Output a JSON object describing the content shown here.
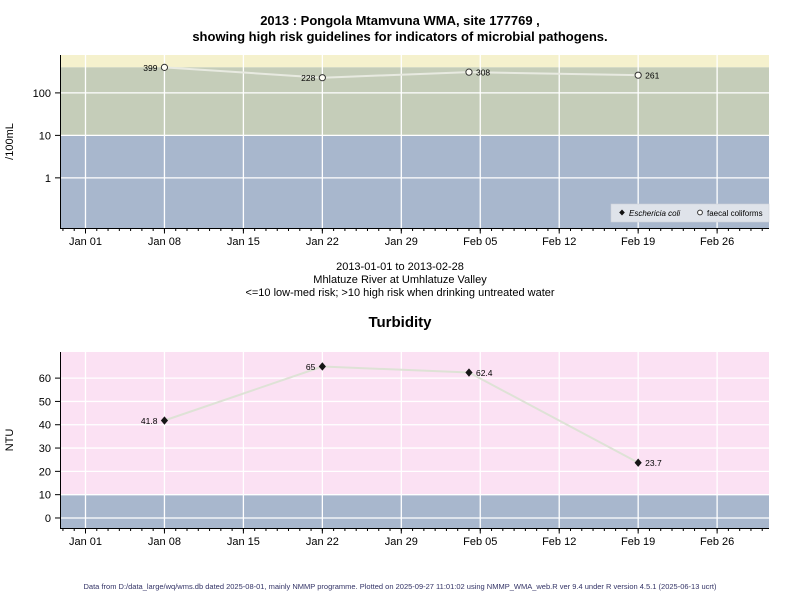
{
  "page": {
    "footer": "Data from D:/data_large/wq/wms.db dated 2025-08-01, mainly NMMP programme. Plotted on 2025-09-27 11:01:02 using NMMP_WMA_web.R ver 9.4 under R version 4.5.1 (2025-06-13 ucrt)"
  },
  "chart_data": [
    {
      "id": "microbial-pathogens",
      "type": "line",
      "title_lines": [
        "2013 : Pongola Mtamvuna WMA, site 177769 ,",
        "showing high risk guidelines for indicators of microbial pathogens."
      ],
      "subtitle_lines": [
        "2013-01-01 to 2013-02-28",
        "Mhlatuze River at Umhlatuze Valley",
        "<=10 low-med risk; >10 high risk when drinking untreated water"
      ],
      "ylabel": "/100mL",
      "yscale": "log",
      "ylim": [
        0.066,
        780
      ],
      "yticks": [
        1,
        10,
        100
      ],
      "ytick_labels": [
        "1",
        "10",
        "100"
      ],
      "xlim_days": [
        -2.26,
        60.6
      ],
      "x_tick_days": [
        0,
        7,
        14,
        21,
        28,
        35,
        42,
        49,
        56
      ],
      "x_tick_labels": [
        "Jan 01",
        "Jan 08",
        "Jan 15",
        "Jan 22",
        "Jan 29",
        "Feb 05",
        "Feb 12",
        "Feb 19",
        "Feb 26"
      ],
      "minor_tick_days": [
        -2,
        60
      ],
      "grid": true,
      "bands": [
        {
          "name": "very-high-risk",
          "from": 400,
          "to": 780,
          "color": "#f5f1cd"
        },
        {
          "name": "high-risk",
          "from": 10,
          "to": 400,
          "color": "#c5cdb9"
        },
        {
          "name": "low-med-risk",
          "from": 0.066,
          "to": 10,
          "color": "#a8b7cd"
        }
      ],
      "series": [
        {
          "name": "faecal coliforms",
          "marker": "open-circle",
          "line_color": "#e8eae1",
          "marker_stroke": "#333333",
          "marker_fill": "#fffef6",
          "x_days": [
            7,
            21,
            34,
            49
          ],
          "values": [
            399,
            228,
            308,
            261
          ],
          "point_labels": [
            "399",
            "228",
            "308",
            "261"
          ],
          "label_side": [
            "left",
            "left",
            "right",
            "right"
          ]
        }
      ],
      "legend": {
        "position": "bottom-right",
        "bg": "#dfe3ea",
        "border": "#cdd1d9",
        "items": [
          {
            "label": "Eschericia coli",
            "marker": "filled-diamond",
            "italic": true
          },
          {
            "label": "faecal coliforms",
            "marker": "open-circle",
            "italic": false
          }
        ]
      }
    },
    {
      "id": "turbidity",
      "type": "line",
      "title": "Turbidity",
      "ylabel": "NTU",
      "yscale": "linear",
      "ylim": [
        -4.3,
        71.2
      ],
      "yticks": [
        0,
        10,
        20,
        30,
        40,
        50,
        60
      ],
      "ytick_labels": [
        "0",
        "10",
        "20",
        "30",
        "40",
        "50",
        "60"
      ],
      "xlim_days": [
        -2.26,
        60.6
      ],
      "x_tick_days": [
        0,
        7,
        14,
        21,
        28,
        35,
        42,
        49,
        56
      ],
      "x_tick_labels": [
        "Jan 01",
        "Jan 08",
        "Jan 15",
        "Jan 22",
        "Jan 29",
        "Feb 05",
        "Feb 12",
        "Feb 19",
        "Feb 26"
      ],
      "minor_tick_days": [
        -2,
        60
      ],
      "grid": true,
      "bands": [
        {
          "name": "high-risk",
          "from": 10,
          "to": 71.2,
          "color": "#fbe1f3"
        },
        {
          "name": "low-risk",
          "from": -4.3,
          "to": 10,
          "color": "#a8b7cd"
        }
      ],
      "series": [
        {
          "name": "turbidity",
          "marker": "filled-diamond",
          "line_color": "#dee2d6",
          "marker_fill": "#161616",
          "x_days": [
            7,
            21,
            34,
            49
          ],
          "values": [
            41.8,
            65,
            62.4,
            23.7
          ],
          "point_labels": [
            "41.8",
            "65",
            "62.4",
            "23.7"
          ],
          "label_side": [
            "left",
            "left",
            "right",
            "right"
          ]
        }
      ]
    }
  ]
}
